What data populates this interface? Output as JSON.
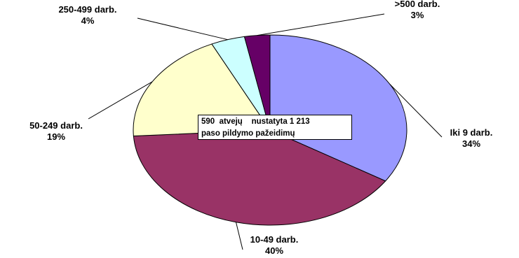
{
  "chart_data": {
    "type": "pie",
    "categories": [
      "Iki 9 darb.",
      "10-49 darb.",
      "50-249 darb.",
      "250-499 darb.",
      ">500 darb."
    ],
    "values": [
      34,
      40,
      19,
      4,
      3
    ],
    "value_labels": [
      "34%",
      "40%",
      "19%",
      "4%",
      "3%"
    ],
    "colors": [
      "#9999ff",
      "#993366",
      "#ffffcc",
      "#ccffff",
      "#660066"
    ],
    "annotation": [
      "590  atvejų    nustatyta 1 213",
      "paso pildymo pažeidimų"
    ],
    "legend": "none"
  }
}
